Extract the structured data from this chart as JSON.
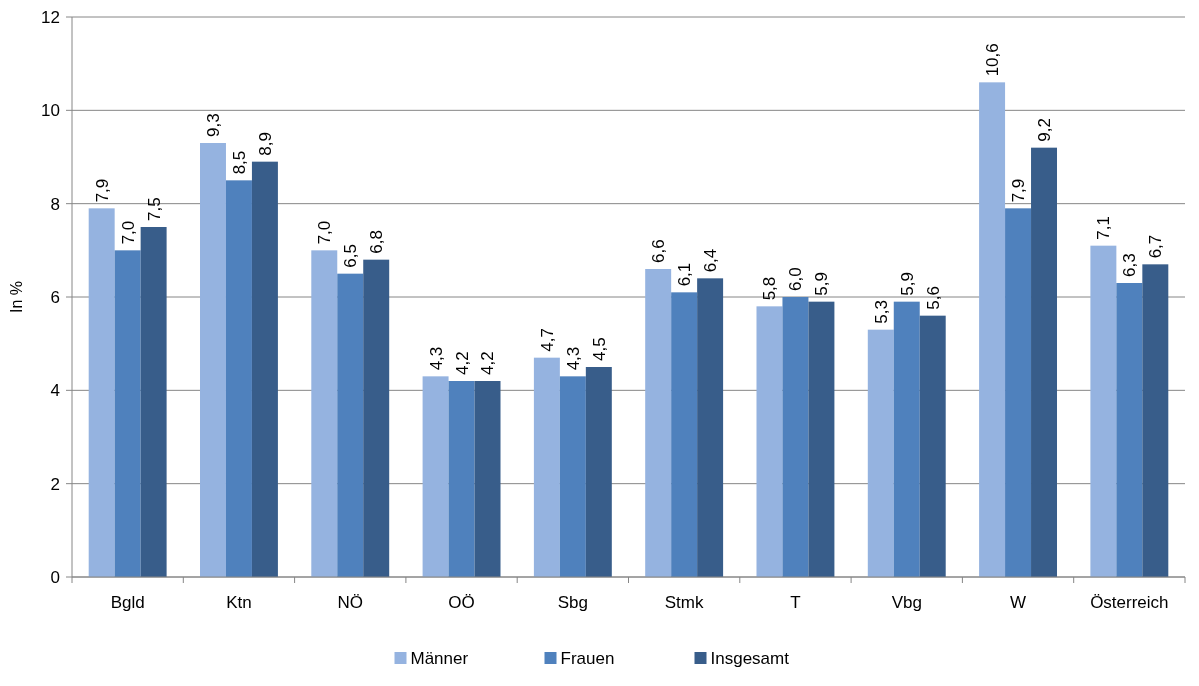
{
  "chart_data": {
    "type": "bar",
    "ylabel": "In %",
    "categories": [
      "Bgld",
      "Ktn",
      "NÖ",
      "OÖ",
      "Sbg",
      "Stmk",
      "T",
      "Vbg",
      "W",
      "Österreich"
    ],
    "series": [
      {
        "name": "Männer",
        "color": "#95b3e0",
        "values": [
          7.9,
          9.3,
          7.0,
          4.3,
          4.7,
          6.6,
          5.8,
          5.3,
          10.6,
          7.1
        ],
        "value_labels": [
          "7,9",
          "9,3",
          "7,0",
          "4,3",
          "4,7",
          "6,6",
          "5,8",
          "5,3",
          "10,6",
          "7,1"
        ]
      },
      {
        "name": "Frauen",
        "color": "#4f81bd",
        "values": [
          7.0,
          8.5,
          6.5,
          4.2,
          4.3,
          6.1,
          6.0,
          5.9,
          7.9,
          6.3
        ],
        "value_labels": [
          "7,0",
          "8,5",
          "6,5",
          "4,2",
          "4,3",
          "6,1",
          "6,0",
          "5,9",
          "7,9",
          "6,3"
        ]
      },
      {
        "name": "Insgesamt",
        "color": "#385d8a",
        "values": [
          7.5,
          8.9,
          6.8,
          4.2,
          4.5,
          6.4,
          5.9,
          5.6,
          9.2,
          6.7
        ],
        "value_labels": [
          "7,5",
          "8,9",
          "6,8",
          "4,2",
          "4,5",
          "6,4",
          "5,9",
          "5,6",
          "9,2",
          "6,7"
        ]
      }
    ],
    "ylim": [
      0,
      12
    ],
    "yticks": [
      0,
      2,
      4,
      6,
      8,
      10,
      12
    ],
    "grid": "y",
    "legend": "bottom"
  }
}
